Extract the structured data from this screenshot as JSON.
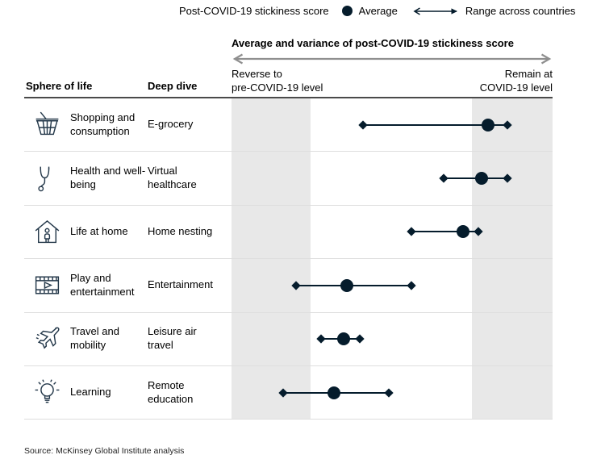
{
  "colors": {
    "navy": "#051c2c",
    "shaded_band": "#e8e8e8",
    "axis_arrow_gray": "#8f8f8f"
  },
  "legend": {
    "title": "Post-COVID-19 stickiness score",
    "average_label": "Average",
    "range_label": "Range across countries",
    "average_icon": "average-dot-icon",
    "range_icon": "range-arrow-icon"
  },
  "chart_header": {
    "title": "Average and variance of post-COVID-19 stickiness score",
    "axis_left_line1": "Reverse to",
    "axis_left_line2": "pre-COVID-19 level",
    "axis_right_line1": "Remain at",
    "axis_right_line2": "COVID-19 level"
  },
  "table": {
    "col_sphere": "Sphere of life",
    "col_deep_dive": "Deep dive"
  },
  "chart_data": {
    "type": "dot-range",
    "x_axis": {
      "min_label": "Reverse to pre-COVID-19 level",
      "max_label": "Remain at COVID-19 level",
      "scale": "relative position 0-100 across chart width (no numeric ticks shown)"
    },
    "legend": [
      "Average",
      "Range across countries"
    ],
    "shaded_zones": [
      {
        "from": 0,
        "to": 24.7
      },
      {
        "from": 74.8,
        "to": 100
      }
    ],
    "rows": [
      {
        "icon": "shopping-basket-icon",
        "sphere": "Shopping and consumption",
        "deep_dive": "E-grocery",
        "range_low": 41,
        "range_high": 86,
        "average": 80
      },
      {
        "icon": "stethoscope-icon",
        "sphere": "Health and well-being",
        "deep_dive": "Virtual healthcare",
        "range_low": 66,
        "range_high": 86,
        "average": 78
      },
      {
        "icon": "house-person-icon",
        "sphere": "Life at home",
        "deep_dive": "Home nesting",
        "range_low": 56,
        "range_high": 77,
        "average": 72
      },
      {
        "icon": "film-play-icon",
        "sphere": "Play and entertainment",
        "deep_dive": "Entertainment",
        "range_low": 20,
        "range_high": 56,
        "average": 36
      },
      {
        "icon": "airplane-icon",
        "sphere": "Travel and mobility",
        "deep_dive": "Leisure air travel",
        "range_low": 28,
        "range_high": 40,
        "average": 35
      },
      {
        "icon": "lightbulb-icon",
        "sphere": "Learning",
        "deep_dive": "Remote education",
        "range_low": 16,
        "range_high": 49,
        "average": 32
      }
    ]
  },
  "source": "Source: McKinsey Global Institute analysis"
}
